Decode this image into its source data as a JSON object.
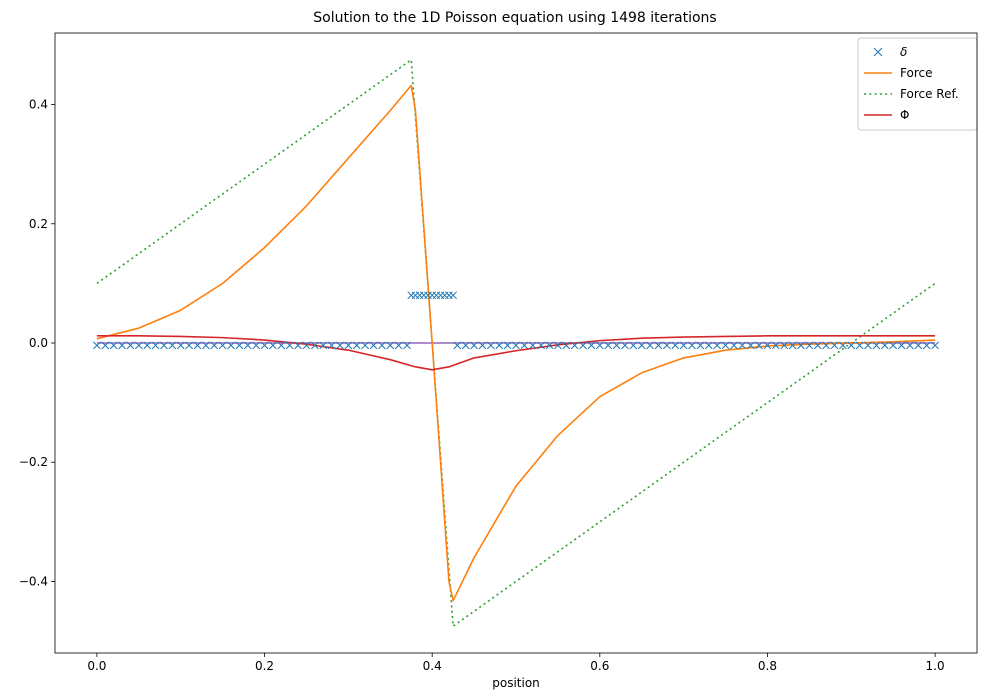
{
  "chart_data": {
    "type": "line",
    "title": "Solution to the 1D Poisson equation using 1498 iterations",
    "xlabel": "position",
    "ylabel": "",
    "xlim": [
      -0.05,
      1.05
    ],
    "ylim": [
      -0.52,
      0.52
    ],
    "xticks": [
      0.0,
      0.2,
      0.4,
      0.6,
      0.8,
      1.0
    ],
    "xtick_labels": [
      "0.0",
      "0.2",
      "0.4",
      "0.6",
      "0.8",
      "1.0"
    ],
    "yticks": [
      -0.4,
      -0.2,
      0.0,
      0.2,
      0.4
    ],
    "ytick_labels": [
      "−0.4",
      "−0.2",
      "0.0",
      "0.2",
      "0.4"
    ],
    "grid": false,
    "legend_position": "top-right",
    "series": [
      {
        "name": "δ",
        "style": "markers-x",
        "color": "#1f77b4",
        "x": [
          0.0,
          0.01,
          0.02,
          0.03,
          0.04,
          0.05,
          0.06,
          0.07,
          0.08,
          0.09,
          0.1,
          0.11,
          0.12,
          0.13,
          0.14,
          0.15,
          0.16,
          0.17,
          0.18,
          0.19,
          0.2,
          0.21,
          0.22,
          0.23,
          0.24,
          0.25,
          0.26,
          0.27,
          0.28,
          0.29,
          0.3,
          0.31,
          0.32,
          0.33,
          0.34,
          0.35,
          0.36,
          0.37,
          0.375,
          0.38,
          0.385,
          0.39,
          0.395,
          0.4,
          0.405,
          0.41,
          0.415,
          0.42,
          0.425,
          0.43,
          0.44,
          0.45,
          0.46,
          0.47,
          0.48,
          0.49,
          0.5,
          0.51,
          0.52,
          0.53,
          0.54,
          0.55,
          0.56,
          0.57,
          0.58,
          0.59,
          0.6,
          0.61,
          0.62,
          0.63,
          0.64,
          0.65,
          0.66,
          0.67,
          0.68,
          0.69,
          0.7,
          0.71,
          0.72,
          0.73,
          0.74,
          0.75,
          0.76,
          0.77,
          0.78,
          0.79,
          0.8,
          0.81,
          0.82,
          0.83,
          0.84,
          0.85,
          0.86,
          0.87,
          0.88,
          0.89,
          0.9,
          0.91,
          0.92,
          0.93,
          0.94,
          0.95,
          0.96,
          0.97,
          0.98,
          0.99,
          1.0
        ],
        "y": [
          -0.004,
          -0.004,
          -0.004,
          -0.004,
          -0.004,
          -0.004,
          -0.004,
          -0.004,
          -0.004,
          -0.004,
          -0.004,
          -0.004,
          -0.004,
          -0.004,
          -0.004,
          -0.004,
          -0.004,
          -0.004,
          -0.004,
          -0.004,
          -0.004,
          -0.004,
          -0.004,
          -0.004,
          -0.004,
          -0.004,
          -0.004,
          -0.004,
          -0.004,
          -0.004,
          -0.004,
          -0.004,
          -0.004,
          -0.004,
          -0.004,
          -0.004,
          -0.004,
          -0.004,
          0.08,
          0.08,
          0.08,
          0.08,
          0.08,
          0.08,
          0.08,
          0.08,
          0.08,
          0.08,
          0.08,
          -0.004,
          -0.004,
          -0.004,
          -0.004,
          -0.004,
          -0.004,
          -0.004,
          -0.004,
          -0.004,
          -0.004,
          -0.004,
          -0.004,
          -0.004,
          -0.004,
          -0.004,
          -0.004,
          -0.004,
          -0.004,
          -0.004,
          -0.004,
          -0.004,
          -0.004,
          -0.004,
          -0.004,
          -0.004,
          -0.004,
          -0.004,
          -0.004,
          -0.004,
          -0.004,
          -0.004,
          -0.004,
          -0.004,
          -0.004,
          -0.004,
          -0.004,
          -0.004,
          -0.004,
          -0.004,
          -0.004,
          -0.004,
          -0.004,
          -0.004,
          -0.004,
          -0.004,
          -0.004,
          -0.004,
          -0.004,
          -0.004,
          -0.004,
          -0.004,
          -0.004,
          -0.004,
          -0.004,
          -0.004,
          -0.004,
          -0.004,
          -0.004
        ]
      },
      {
        "name": "Force",
        "style": "solid",
        "color": "#ff7f0e",
        "x": [
          0.0,
          0.05,
          0.1,
          0.15,
          0.2,
          0.25,
          0.3,
          0.35,
          0.375,
          0.38,
          0.4,
          0.42,
          0.425,
          0.45,
          0.5,
          0.55,
          0.6,
          0.65,
          0.7,
          0.75,
          0.8,
          0.85,
          0.9,
          0.95,
          1.0
        ],
        "y": [
          0.007,
          0.025,
          0.055,
          0.1,
          0.16,
          0.23,
          0.31,
          0.39,
          0.432,
          0.39,
          0.0,
          -0.4,
          -0.432,
          -0.36,
          -0.24,
          -0.155,
          -0.09,
          -0.05,
          -0.025,
          -0.012,
          -0.005,
          -0.002,
          0.0,
          0.002,
          0.005
        ]
      },
      {
        "name": "Force Ref.",
        "style": "dotted",
        "color": "#2ca02c",
        "x": [
          0.0,
          0.375,
          0.425,
          1.0
        ],
        "y": [
          0.1,
          0.475,
          -0.475,
          0.1
        ]
      },
      {
        "name": "Φ",
        "style": "solid",
        "color": "#d62728",
        "x": [
          0.0,
          0.05,
          0.1,
          0.15,
          0.2,
          0.25,
          0.3,
          0.35,
          0.38,
          0.4,
          0.42,
          0.45,
          0.5,
          0.55,
          0.6,
          0.65,
          0.7,
          0.75,
          0.8,
          0.85,
          0.9,
          0.95,
          1.0
        ],
        "y": [
          0.012,
          0.012,
          0.011,
          0.009,
          0.005,
          -0.002,
          -0.012,
          -0.028,
          -0.04,
          -0.045,
          -0.04,
          -0.025,
          -0.013,
          -0.003,
          0.004,
          0.008,
          0.01,
          0.011,
          0.012,
          0.012,
          0.012,
          0.012,
          0.012
        ]
      },
      {
        "name": "",
        "style": "solid",
        "color": "#9467bd",
        "x": [
          0.0,
          1.0
        ],
        "y": [
          0.0,
          0.0
        ]
      }
    ]
  }
}
